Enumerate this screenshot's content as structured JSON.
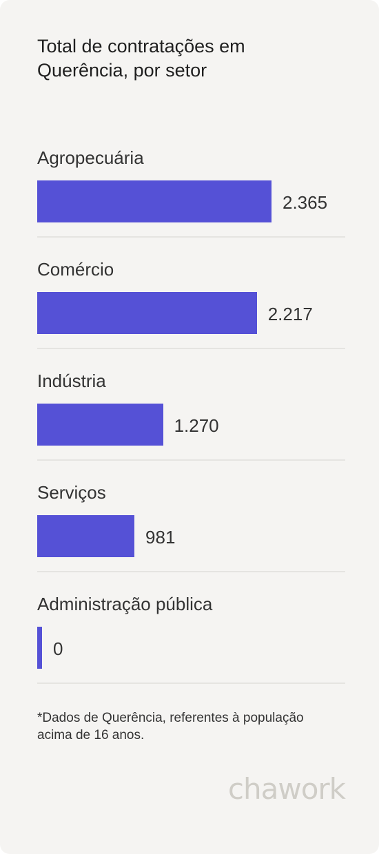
{
  "title": "Total de contratações em Querência, por setor",
  "chart_data": {
    "type": "bar",
    "orientation": "horizontal",
    "title": "Total de contratações em Querência, por setor",
    "categories": [
      "Agropecuária",
      "Comércio",
      "Indústria",
      "Serviços",
      "Administração pública"
    ],
    "values": [
      2365,
      2217,
      1270,
      981,
      0
    ],
    "value_labels": [
      "2.365",
      "2.217",
      "1.270",
      "981",
      "0"
    ],
    "bar_color": "#5551d6",
    "xlim": [
      0,
      2365
    ],
    "grid": false,
    "legend": "none"
  },
  "footnote": "*Dados de Querência, referentes à população acima de 16 anos.",
  "brand": {
    "logo_text": "chawork",
    "logo_color": "#cfcdc7"
  },
  "colors": {
    "background": "#f5f4f2",
    "bar": "#5551d6",
    "text": "#333333",
    "divider": "#e5e4e1"
  }
}
